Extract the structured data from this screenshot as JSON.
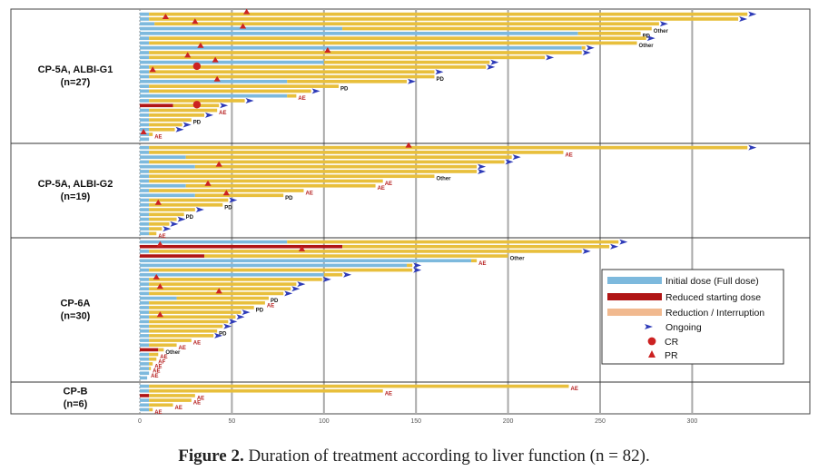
{
  "caption": {
    "prefix": "Figure 2.",
    "text": "Duration of treatment according to liver function (n = 82)."
  },
  "chart_data": {
    "type": "bar",
    "orientation": "horizontal-stacked",
    "xlim": [
      0,
      340
    ],
    "xticks": [
      0,
      50,
      100,
      150,
      200,
      250,
      300
    ],
    "grid": "vertical",
    "legend_position": "right",
    "colors": {
      "initial": "#7db9dd",
      "reduced": "#b01515",
      "reduction": "#e8bf3c",
      "ongoing": "#2e3bb8",
      "marker": "#cc2222",
      "ae_text": "#b51c1c",
      "other_text": "#222222"
    },
    "legend": [
      {
        "kind": "initial",
        "label": "Initial dose (Full dose)"
      },
      {
        "kind": "reduced",
        "label": "Reduced starting dose"
      },
      {
        "kind": "reduction",
        "label": "Reduction / Interruption"
      },
      {
        "kind": "ongoing",
        "label": "Ongoing"
      },
      {
        "kind": "cr",
        "label": "CR"
      },
      {
        "kind": "pr",
        "label": "PR"
      }
    ],
    "groups": [
      {
        "label_line1": "CP-5A, ALBI-G1",
        "label_line2": "(n=27)",
        "patients": [
          {
            "start": "initial",
            "switch": 5,
            "end": 330,
            "ongoing": true,
            "pr": 58
          },
          {
            "start": "initial",
            "switch": 5,
            "end": 325,
            "ongoing": true,
            "pr": 14
          },
          {
            "start": "initial",
            "switch": 8,
            "end": 282,
            "ongoing": true,
            "pr": 30
          },
          {
            "start": "initial",
            "switch": 110,
            "end": 278,
            "ann": "Other",
            "pr": 56
          },
          {
            "start": "initial",
            "switch": 238,
            "end": 272,
            "ann": "PD"
          },
          {
            "start": "initial",
            "switch": 5,
            "end": 275,
            "ongoing": true
          },
          {
            "start": "initial",
            "switch": 5,
            "end": 270,
            "ann": "Other"
          },
          {
            "start": "initial",
            "switch": 240,
            "end": 242,
            "ongoing": true,
            "pr": 33
          },
          {
            "start": "initial",
            "switch": 5,
            "end": 240,
            "ongoing": true,
            "pr": 102
          },
          {
            "start": "initial",
            "switch": 5,
            "end": 220,
            "ongoing": true,
            "pr": 26
          },
          {
            "start": "initial",
            "switch": 100,
            "end": 190,
            "ongoing": true,
            "pr": 41
          },
          {
            "start": "initial",
            "switch": 5,
            "end": 188,
            "ongoing": true,
            "cr": 31
          },
          {
            "start": "initial",
            "switch": 5,
            "end": 160,
            "ongoing": true,
            "pr": 7
          },
          {
            "start": "initial",
            "switch": 5,
            "end": 160,
            "ann": "PD"
          },
          {
            "start": "initial",
            "switch": 80,
            "end": 145,
            "ongoing": true,
            "pr": 42
          },
          {
            "start": "initial",
            "switch": 5,
            "end": 108,
            "ann": "PD"
          },
          {
            "start": "initial",
            "switch": 5,
            "end": 93,
            "ongoing": true
          },
          {
            "start": "initial",
            "switch": 80,
            "end": 85,
            "ann": "AE"
          },
          {
            "start": "initial",
            "switch": 5,
            "end": 57,
            "ongoing": true
          },
          {
            "start": "reduced",
            "switch": 18,
            "end": 43,
            "ongoing": true,
            "cr": 31
          },
          {
            "start": "initial",
            "switch": 5,
            "end": 42,
            "ann": "AE"
          },
          {
            "start": "initial",
            "switch": 5,
            "end": 35,
            "ongoing": true
          },
          {
            "start": "initial",
            "switch": 5,
            "end": 28,
            "ann": "PD"
          },
          {
            "start": "initial",
            "switch": 5,
            "end": 23,
            "ongoing": true
          },
          {
            "start": "initial",
            "switch": 5,
            "end": 19,
            "ongoing": true
          },
          {
            "start": "initial",
            "switch": 5,
            "end": 7,
            "ann": "AE",
            "pr": 2
          },
          {
            "start": "initial",
            "switch": 5,
            "end": 5
          }
        ]
      },
      {
        "label_line1": "CP-5A, ALBI-G2",
        "label_line2": "(n=19)",
        "patients": [
          {
            "start": "initial",
            "switch": 5,
            "end": 330,
            "ongoing": true,
            "pr": 146
          },
          {
            "start": "initial",
            "switch": 5,
            "end": 230,
            "ann": "AE"
          },
          {
            "start": "initial",
            "switch": 25,
            "end": 202,
            "ongoing": true
          },
          {
            "start": "initial",
            "switch": 5,
            "end": 198,
            "ongoing": true
          },
          {
            "start": "initial",
            "switch": 30,
            "end": 183,
            "ongoing": true,
            "pr": 43
          },
          {
            "start": "initial",
            "switch": 5,
            "end": 183,
            "ongoing": true
          },
          {
            "start": "initial",
            "switch": 5,
            "end": 160,
            "ann": "Other"
          },
          {
            "start": "initial",
            "switch": 5,
            "end": 132,
            "ann": "AE"
          },
          {
            "start": "initial",
            "switch": 25,
            "end": 128,
            "ann": "AE",
            "pr": 37
          },
          {
            "start": "initial",
            "switch": 5,
            "end": 89,
            "ann": "AE"
          },
          {
            "start": "initial",
            "switch": 30,
            "end": 78,
            "ann": "PD",
            "pr": 47
          },
          {
            "start": "initial",
            "switch": 5,
            "end": 48,
            "ongoing": true
          },
          {
            "start": "initial",
            "switch": 5,
            "end": 45,
            "ann": "PD",
            "pr": 10
          },
          {
            "start": "initial",
            "switch": 5,
            "end": 30,
            "ongoing": true
          },
          {
            "start": "initial",
            "switch": 5,
            "end": 24,
            "ann": "PD"
          },
          {
            "start": "initial",
            "switch": 5,
            "end": 20,
            "ongoing": true
          },
          {
            "start": "initial",
            "switch": 5,
            "end": 16,
            "ongoing": true
          },
          {
            "start": "initial",
            "switch": 5,
            "end": 12,
            "ongoing": true
          },
          {
            "start": "initial",
            "switch": 5,
            "end": 9,
            "ann": "AE"
          }
        ]
      },
      {
        "label_line1": "CP-6A",
        "label_line2": "(n=30)",
        "patients": [
          {
            "start": "initial",
            "switch": 80,
            "end": 260,
            "ongoing": true
          },
          {
            "start": "reduced",
            "switch": 110,
            "end": 255,
            "ongoing": true,
            "pr": 11
          },
          {
            "start": "initial",
            "switch": 5,
            "end": 240,
            "ongoing": true,
            "pr": 88
          },
          {
            "start": "reduced",
            "switch": 35,
            "end": 200,
            "ann": "Other"
          },
          {
            "start": "initial",
            "switch": 180,
            "end": 183,
            "ann": "AE"
          },
          {
            "start": "initial",
            "switch": 145,
            "end": 148,
            "ongoing": true
          },
          {
            "start": "initial",
            "switch": 5,
            "end": 148,
            "ongoing": true
          },
          {
            "start": "initial",
            "switch": 100,
            "end": 110,
            "ongoing": true
          },
          {
            "start": "initial",
            "switch": 5,
            "end": 99,
            "ongoing": true,
            "pr": 9
          },
          {
            "start": "initial",
            "switch": 5,
            "end": 85,
            "ongoing": true
          },
          {
            "start": "initial",
            "switch": 5,
            "end": 82,
            "ongoing": true,
            "pr": 11
          },
          {
            "start": "initial",
            "switch": 5,
            "end": 78,
            "ongoing": true,
            "pr": 43
          },
          {
            "start": "initial",
            "switch": 20,
            "end": 70,
            "ann": "PD"
          },
          {
            "start": "initial",
            "switch": 5,
            "end": 68,
            "ann": "AE"
          },
          {
            "start": "initial",
            "switch": 5,
            "end": 62,
            "ann": "PD"
          },
          {
            "start": "initial",
            "switch": 5,
            "end": 55,
            "ongoing": true
          },
          {
            "start": "initial",
            "switch": 5,
            "end": 52,
            "ongoing": true,
            "pr": 11
          },
          {
            "start": "initial",
            "switch": 5,
            "end": 48,
            "ongoing": true
          },
          {
            "start": "initial",
            "switch": 5,
            "end": 45,
            "ongoing": true
          },
          {
            "start": "initial",
            "switch": 5,
            "end": 42,
            "ann": "PD"
          },
          {
            "start": "initial",
            "switch": 5,
            "end": 40,
            "ongoing": true
          },
          {
            "start": "initial",
            "switch": 5,
            "end": 28,
            "ann": "AE"
          },
          {
            "start": "initial",
            "switch": 5,
            "end": 20,
            "ann": "AE"
          },
          {
            "start": "reduced",
            "switch": 10,
            "end": 13,
            "ann": "Other"
          },
          {
            "start": "initial",
            "switch": 5,
            "end": 10,
            "ann": "AE"
          },
          {
            "start": "initial",
            "switch": 5,
            "end": 9,
            "ann": "AF"
          },
          {
            "start": "initial",
            "switch": 5,
            "end": 7,
            "ann": "AE"
          },
          {
            "start": "initial",
            "switch": 5,
            "end": 6,
            "ann": "AE"
          },
          {
            "start": "initial",
            "switch": 5,
            "end": 5,
            "ann": "AE"
          },
          {
            "start": "initial",
            "switch": 4,
            "end": 4
          }
        ]
      },
      {
        "label_line1": "CP-B",
        "label_line2": "(n=6)",
        "patients": [
          {
            "start": "initial",
            "switch": 5,
            "end": 233,
            "ann": "AE"
          },
          {
            "start": "initial",
            "switch": 5,
            "end": 132,
            "ann": "AE"
          },
          {
            "start": "reduced",
            "switch": 5,
            "end": 30,
            "ann": "AE"
          },
          {
            "start": "initial",
            "switch": 5,
            "end": 28,
            "ann": "AE"
          },
          {
            "start": "initial",
            "switch": 5,
            "end": 18,
            "ann": "AE"
          },
          {
            "start": "initial",
            "switch": 5,
            "end": 7,
            "ann": "AE"
          }
        ]
      }
    ]
  }
}
